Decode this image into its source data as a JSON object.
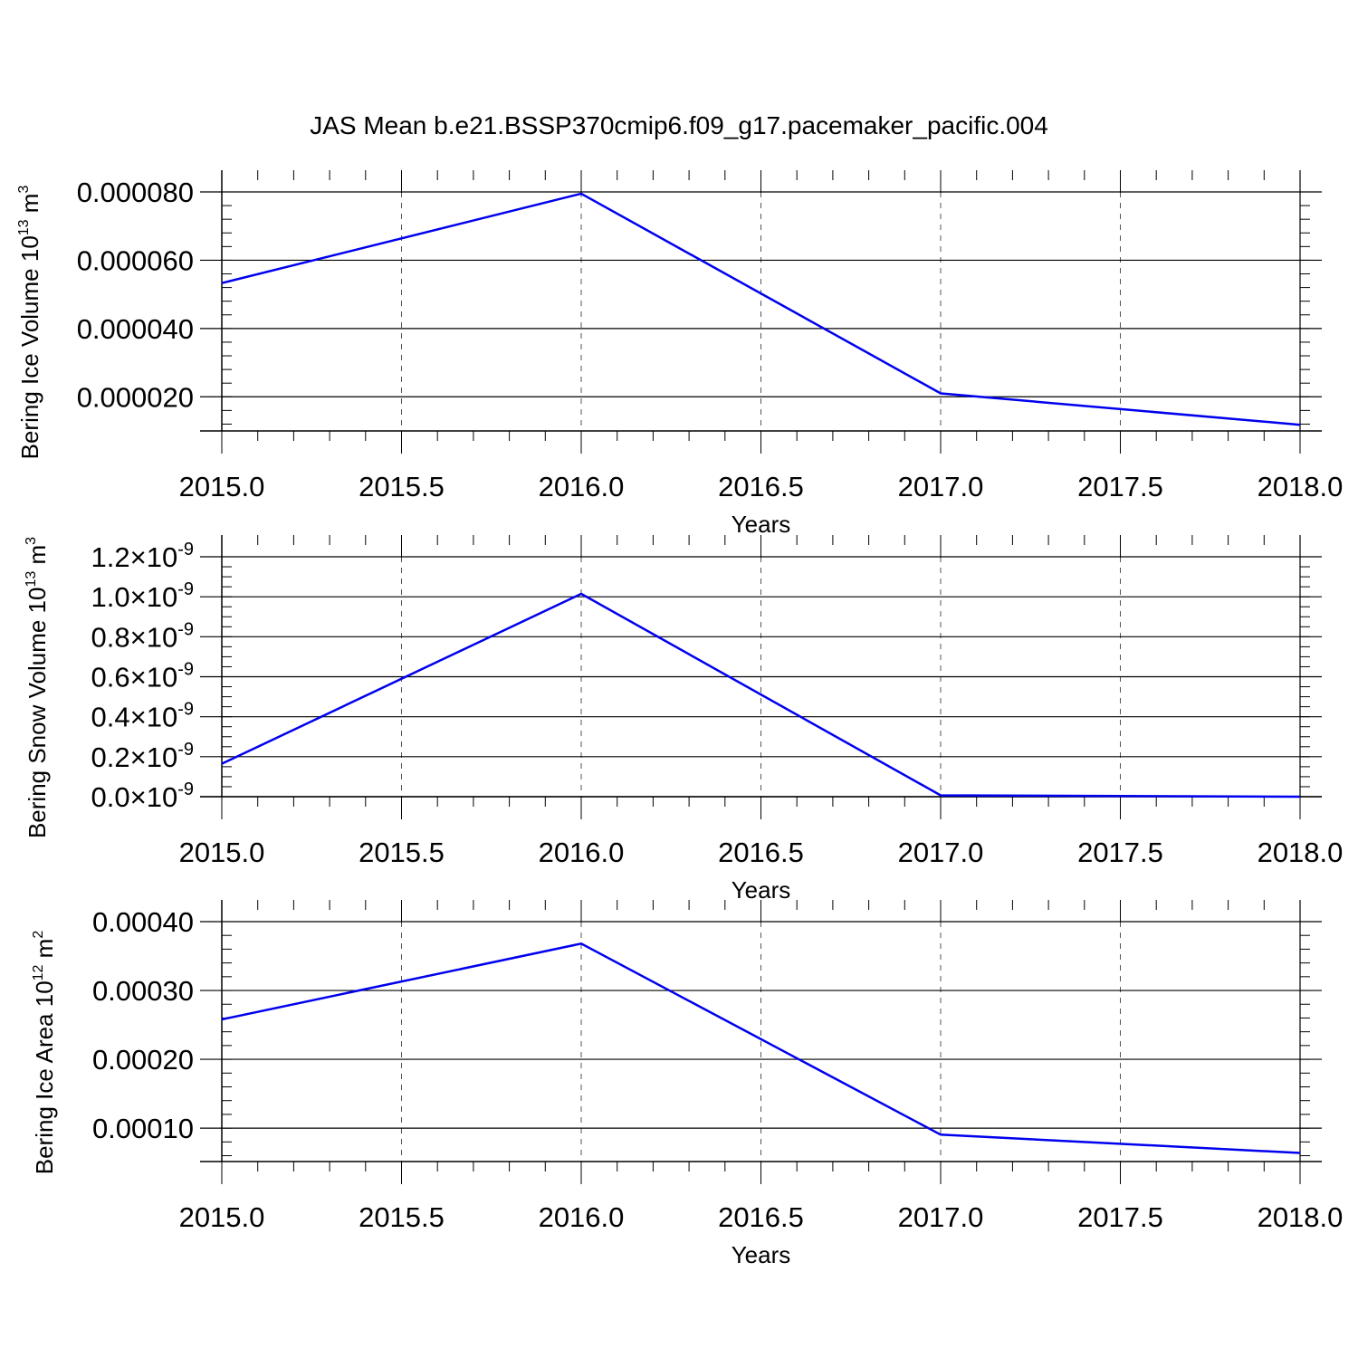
{
  "title": "JAS Mean b.e21.BSSP370cmip6.f09_g17.pacemaker_pacific.004",
  "colors": {
    "series": "#0000ee",
    "axes": "#000000",
    "grid": "#555555"
  },
  "chart_data": [
    {
      "type": "line",
      "ylabel": "Bering Ice Volume 10",
      "ylabel_exp": "13",
      "ylabel_unit": " m",
      "ylabel_unit_exp": "3",
      "xlabel": "Years",
      "xlim": [
        2015.0,
        2018.0
      ],
      "ylim": [
        1e-05,
        8e-05
      ],
      "x": [
        2015,
        2016,
        2017,
        2018
      ],
      "series": [
        {
          "values": [
            5.33e-05,
            7.95e-05,
            2.1e-05,
            1.18e-05
          ]
        }
      ],
      "x_ticks": [
        "2015.0",
        "2015.5",
        "2016.0",
        "2016.5",
        "2017.0",
        "2017.5",
        "2018.0"
      ],
      "y_ticks": [
        {
          "value": 8e-05,
          "label": "0.000080"
        },
        {
          "value": 6e-05,
          "label": "0.000060"
        },
        {
          "value": 4e-05,
          "label": "0.000040"
        },
        {
          "value": 2e-05,
          "label": "0.000020"
        }
      ],
      "y_minor_step": 4e-06,
      "grid": "vertical dashed"
    },
    {
      "type": "line",
      "ylabel": "Bering Snow Volume 10",
      "ylabel_exp": "13",
      "ylabel_unit": " m",
      "ylabel_unit_exp": "3",
      "xlabel": "Years",
      "xlim": [
        2015.0,
        2018.0
      ],
      "ylim": [
        0.0,
        1.2e-09
      ],
      "x": [
        2015,
        2016,
        2017,
        2018
      ],
      "series": [
        {
          "values": [
            1.65e-10,
            1.015e-09,
            7e-12,
            0.0
          ]
        }
      ],
      "x_ticks": [
        "2015.0",
        "2015.5",
        "2016.0",
        "2016.5",
        "2017.0",
        "2017.5",
        "2018.0"
      ],
      "y_ticks": [
        {
          "value": 1.2e-09,
          "label": "1.2",
          "times": "×10",
          "exp": "-9"
        },
        {
          "value": 1e-09,
          "label": "1.0",
          "times": "×10",
          "exp": "-9"
        },
        {
          "value": 8e-10,
          "label": "0.8",
          "times": "×10",
          "exp": "-9"
        },
        {
          "value": 6e-10,
          "label": "0.6",
          "times": "×10",
          "exp": "-9"
        },
        {
          "value": 4e-10,
          "label": "0.4",
          "times": "×10",
          "exp": "-9"
        },
        {
          "value": 2e-10,
          "label": "0.2",
          "times": "×10",
          "exp": "-9"
        },
        {
          "value": 0.0,
          "label": "0.0",
          "times": "×10",
          "exp": "-9"
        }
      ],
      "y_minor_step": 5e-11,
      "grid": "vertical dashed"
    },
    {
      "type": "line",
      "ylabel": "Bering Ice Area 10",
      "ylabel_exp": "12",
      "ylabel_unit": " m",
      "ylabel_unit_exp": "2",
      "xlabel": "Years",
      "xlim": [
        2015.0,
        2018.0
      ],
      "ylim": [
        5.15e-05,
        0.0004
      ],
      "x": [
        2015,
        2016,
        2017,
        2018
      ],
      "series": [
        {
          "values": [
            0.000258,
            0.000368,
            9.05e-05,
            6.4e-05
          ]
        }
      ],
      "x_ticks": [
        "2015.0",
        "2015.5",
        "2016.0",
        "2016.5",
        "2017.0",
        "2017.5",
        "2018.0"
      ],
      "y_ticks": [
        {
          "value": 0.0004,
          "label": "0.00040"
        },
        {
          "value": 0.0003,
          "label": "0.00030"
        },
        {
          "value": 0.0002,
          "label": "0.00020"
        },
        {
          "value": 0.0001,
          "label": "0.00010"
        }
      ],
      "y_minor_step": 2e-05,
      "grid": "vertical dashed"
    }
  ]
}
